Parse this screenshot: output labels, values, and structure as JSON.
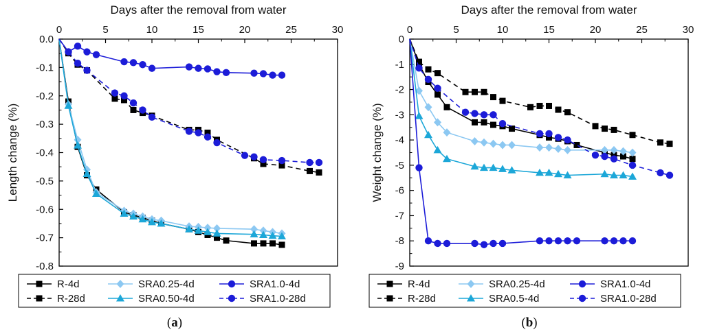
{
  "chart_data": [
    {
      "type": "line",
      "panel_label": "a",
      "xlabel": "Days after the removal from water",
      "ylabel": "Length change (%)",
      "xlim": [
        0,
        30
      ],
      "ylim": [
        -0.8,
        0.0
      ],
      "xticks": [
        0,
        5,
        10,
        15,
        20,
        25,
        30
      ],
      "yticks": [
        0.0,
        -0.1,
        -0.2,
        -0.3,
        -0.4,
        -0.5,
        -0.6,
        -0.7,
        -0.8
      ],
      "ytick_labels": [
        "0.0",
        "-0.1",
        "-0.2",
        "-0.3",
        "-0.4",
        "-0.5",
        "-0.6",
        "-0.7",
        "-0.8"
      ],
      "series": [
        {
          "name": "R-4d",
          "color": "#000000",
          "marker": "square",
          "dash": false,
          "x": [
            0,
            1,
            2,
            3,
            4,
            7,
            8,
            9,
            10,
            11,
            14,
            15,
            16,
            17,
            18,
            21,
            22,
            23,
            24
          ],
          "y": [
            0,
            -0.22,
            -0.38,
            -0.48,
            -0.53,
            -0.61,
            -0.62,
            -0.63,
            -0.64,
            -0.65,
            -0.67,
            -0.68,
            -0.69,
            -0.7,
            -0.71,
            -0.72,
            -0.72,
            -0.72,
            -0.725
          ]
        },
        {
          "name": "R-28d",
          "color": "#000000",
          "marker": "square",
          "dash": true,
          "x": [
            0,
            1,
            2,
            3,
            6,
            7,
            8,
            9,
            10,
            14,
            15,
            16,
            17,
            21,
            22,
            24,
            27,
            28
          ],
          "y": [
            0,
            -0.05,
            -0.09,
            -0.11,
            -0.21,
            -0.215,
            -0.25,
            -0.26,
            -0.27,
            -0.32,
            -0.32,
            -0.33,
            -0.355,
            -0.42,
            -0.44,
            -0.445,
            -0.465,
            -0.47
          ]
        },
        {
          "name": "SRA0.25-4d",
          "color": "#8cc8f2",
          "marker": "diamond",
          "dash": false,
          "x": [
            0,
            1,
            2,
            3,
            4,
            7,
            8,
            9,
            10,
            11,
            14,
            15,
            16,
            17,
            21,
            22,
            23,
            24
          ],
          "y": [
            0,
            -0.23,
            -0.355,
            -0.46,
            -0.54,
            -0.605,
            -0.615,
            -0.625,
            -0.635,
            -0.64,
            -0.66,
            -0.662,
            -0.665,
            -0.667,
            -0.67,
            -0.675,
            -0.68,
            -0.685
          ]
        },
        {
          "name": "SRA0.50-4d",
          "color": "#1ca7d8",
          "marker": "triangle",
          "dash": false,
          "x": [
            0,
            1,
            2,
            3,
            4,
            7,
            8,
            9,
            10,
            11,
            14,
            15,
            16,
            17,
            21,
            22,
            23,
            24
          ],
          "y": [
            0,
            -0.235,
            -0.375,
            -0.475,
            -0.545,
            -0.615,
            -0.625,
            -0.635,
            -0.645,
            -0.65,
            -0.67,
            -0.675,
            -0.68,
            -0.685,
            -0.688,
            -0.69,
            -0.693,
            -0.695
          ]
        },
        {
          "name": "SRA1.0-4d",
          "color": "#1c1cd8",
          "marker": "circle",
          "dash": false,
          "x": [
            0,
            1,
            2,
            3,
            4,
            7,
            8,
            9,
            10,
            14,
            15,
            16,
            17,
            18,
            21,
            22,
            23,
            24
          ],
          "y": [
            0,
            -0.045,
            -0.025,
            -0.045,
            -0.055,
            -0.08,
            -0.083,
            -0.09,
            -0.103,
            -0.098,
            -0.103,
            -0.105,
            -0.115,
            -0.118,
            -0.12,
            -0.122,
            -0.127,
            -0.127
          ]
        },
        {
          "name": "SRA1.0-28d",
          "color": "#1c1cd8",
          "marker": "circle",
          "dash": true,
          "x": [
            0,
            1,
            2,
            3,
            6,
            7,
            8,
            9,
            10,
            14,
            15,
            16,
            17,
            20,
            21,
            22,
            24,
            27,
            28
          ],
          "y": [
            0,
            -0.045,
            -0.085,
            -0.11,
            -0.19,
            -0.2,
            -0.225,
            -0.25,
            -0.275,
            -0.325,
            -0.33,
            -0.345,
            -0.365,
            -0.41,
            -0.415,
            -0.425,
            -0.428,
            -0.435,
            -0.435
          ]
        }
      ]
    },
    {
      "type": "line",
      "panel_label": "b",
      "xlabel": "Days after the removal from water",
      "ylabel": "Weight change (%)",
      "xlim": [
        0,
        30
      ],
      "ylim": [
        -9,
        0
      ],
      "xticks": [
        0,
        5,
        10,
        15,
        20,
        25,
        30
      ],
      "yticks": [
        0,
        -1,
        -2,
        -3,
        -4,
        -5,
        -6,
        -7,
        -8,
        -9
      ],
      "ytick_labels": [
        "0",
        "-1",
        "-2",
        "-3",
        "-4",
        "-5",
        "-6",
        "-7",
        "-8",
        "-9"
      ],
      "series": [
        {
          "name": "R-4d",
          "color": "#000000",
          "marker": "square",
          "dash": false,
          "x": [
            0,
            1,
            2,
            3,
            4,
            7,
            8,
            9,
            10,
            11,
            14,
            15,
            16,
            17,
            18,
            21,
            22,
            23,
            24
          ],
          "y": [
            0,
            -1.0,
            -1.7,
            -2.2,
            -2.7,
            -3.3,
            -3.3,
            -3.4,
            -3.45,
            -3.55,
            -3.8,
            -3.9,
            -3.95,
            -4.05,
            -4.2,
            -4.5,
            -4.6,
            -4.65,
            -4.75
          ]
        },
        {
          "name": "R-28d",
          "color": "#000000",
          "marker": "square",
          "dash": true,
          "x": [
            0,
            1,
            2,
            3,
            6,
            7,
            8,
            9,
            10,
            13,
            14,
            15,
            16,
            17,
            20,
            21,
            22,
            24,
            27,
            28
          ],
          "y": [
            0,
            -0.9,
            -1.2,
            -1.35,
            -2.1,
            -2.1,
            -2.1,
            -2.3,
            -2.45,
            -2.7,
            -2.65,
            -2.65,
            -2.8,
            -2.9,
            -3.45,
            -3.55,
            -3.6,
            -3.8,
            -4.1,
            -4.15
          ]
        },
        {
          "name": "SRA0.25-4d",
          "color": "#8cc8f2",
          "marker": "diamond",
          "dash": false,
          "x": [
            0,
            1,
            2,
            3,
            4,
            7,
            8,
            9,
            10,
            11,
            14,
            15,
            16,
            17,
            21,
            22,
            23,
            24
          ],
          "y": [
            0,
            -2.05,
            -2.7,
            -3.3,
            -3.7,
            -4.05,
            -4.1,
            -4.15,
            -4.2,
            -4.2,
            -4.3,
            -4.3,
            -4.35,
            -4.4,
            -4.4,
            -4.4,
            -4.45,
            -4.5
          ]
        },
        {
          "name": "SRA0.5-4d",
          "color": "#1ca7d8",
          "marker": "triangle",
          "dash": false,
          "x": [
            0,
            1,
            2,
            3,
            4,
            7,
            8,
            9,
            10,
            11,
            14,
            15,
            16,
            17,
            21,
            22,
            23,
            24
          ],
          "y": [
            0,
            -3.05,
            -3.8,
            -4.4,
            -4.75,
            -5.05,
            -5.1,
            -5.1,
            -5.15,
            -5.2,
            -5.3,
            -5.3,
            -5.35,
            -5.4,
            -5.35,
            -5.4,
            -5.4,
            -5.45
          ]
        },
        {
          "name": "SRA1.0-4d",
          "color": "#1c1cd8",
          "marker": "circle",
          "dash": false,
          "x": [
            0,
            1,
            2,
            3,
            4,
            7,
            8,
            9,
            10,
            14,
            15,
            16,
            17,
            18,
            21,
            22,
            23,
            24
          ],
          "y": [
            0,
            -5.1,
            -8.0,
            -8.1,
            -8.1,
            -8.1,
            -8.15,
            -8.1,
            -8.1,
            -8.0,
            -8.0,
            -8.0,
            -8.0,
            -8.0,
            -8.0,
            -8.0,
            -8.0,
            -8.0
          ]
        },
        {
          "name": "SRA1.0-28d",
          "color": "#1c1cd8",
          "marker": "circle",
          "dash": true,
          "x": [
            0,
            1,
            2,
            3,
            6,
            7,
            8,
            9,
            10,
            14,
            15,
            16,
            17,
            20,
            21,
            22,
            24,
            27,
            28
          ],
          "y": [
            0,
            -1.15,
            -1.6,
            -1.95,
            -2.9,
            -2.95,
            -3.0,
            -3.0,
            -3.35,
            -3.75,
            -3.75,
            -3.9,
            -4.0,
            -4.6,
            -4.65,
            -4.75,
            -5.0,
            -5.3,
            -5.4
          ]
        }
      ]
    }
  ]
}
